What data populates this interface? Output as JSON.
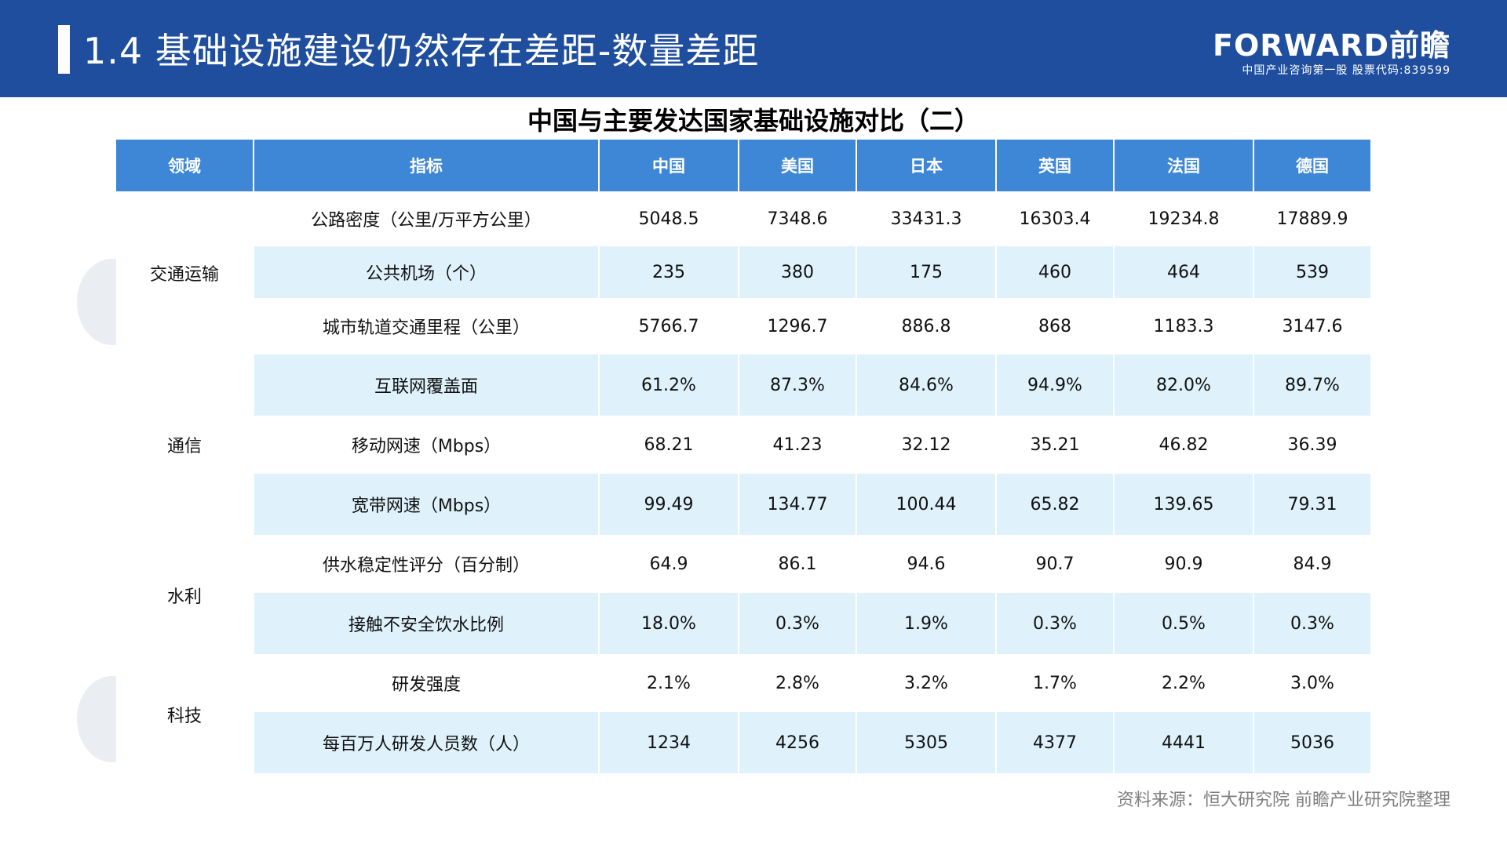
{
  "header": {
    "title": "1.4 基础设施建设仍然存在差距-数量差距",
    "logo_main": "FORWARD前瞻",
    "logo_sub": "中国产业咨询第一股 股票代码:839599"
  },
  "table": {
    "title": "中国与主要发达国家基础设施对比（二）",
    "headers": [
      "领域",
      "指标",
      "中国",
      "美国",
      "日本",
      "英国",
      "法国",
      "德国"
    ],
    "groups": [
      {
        "domain": "交通运输",
        "rows": [
          {
            "indicator": "公路密度（公里/万平方公里）",
            "values": [
              "5048.5",
              "7348.6",
              "33431.3",
              "16303.4",
              "19234.8",
              "17889.9"
            ]
          },
          {
            "indicator": "公共机场（个）",
            "values": [
              "235",
              "380",
              "175",
              "460",
              "464",
              "539"
            ]
          },
          {
            "indicator": "城市轨道交通里程（公里）",
            "values": [
              "5766.7",
              "1296.7",
              "886.8",
              "868",
              "1183.3",
              "3147.6"
            ]
          }
        ]
      },
      {
        "domain": "通信",
        "rows": [
          {
            "indicator": "互联网覆盖面",
            "values": [
              "61.2%",
              "87.3%",
              "84.6%",
              "94.9%",
              "82.0%",
              "89.7%"
            ]
          },
          {
            "indicator": "移动网速（Mbps）",
            "values": [
              "68.21",
              "41.23",
              "32.12",
              "35.21",
              "46.82",
              "36.39"
            ]
          },
          {
            "indicator": "宽带网速（Mbps）",
            "values": [
              "99.49",
              "134.77",
              "100.44",
              "65.82",
              "139.65",
              "79.31"
            ]
          }
        ]
      },
      {
        "domain": "水利",
        "rows": [
          {
            "indicator": "供水稳定性评分（百分制）",
            "values": [
              "64.9",
              "86.1",
              "94.6",
              "90.7",
              "90.9",
              "84.9"
            ]
          },
          {
            "indicator": "接触不安全饮水比例",
            "values": [
              "18.0%",
              "0.3%",
              "1.9%",
              "0.3%",
              "0.5%",
              "0.3%"
            ]
          }
        ]
      },
      {
        "domain": "科技",
        "rows": [
          {
            "indicator": "研发强度",
            "values": [
              "2.1%",
              "2.8%",
              "3.2%",
              "1.7%",
              "2.2%",
              "3.0%"
            ]
          },
          {
            "indicator": "每百万人研发人员数（人）",
            "values": [
              "1234",
              "4256",
              "5305",
              "4377",
              "4441",
              "5036"
            ]
          }
        ]
      }
    ]
  },
  "source": "资料来源：恒大研究院 前瞻产业研究院整理"
}
